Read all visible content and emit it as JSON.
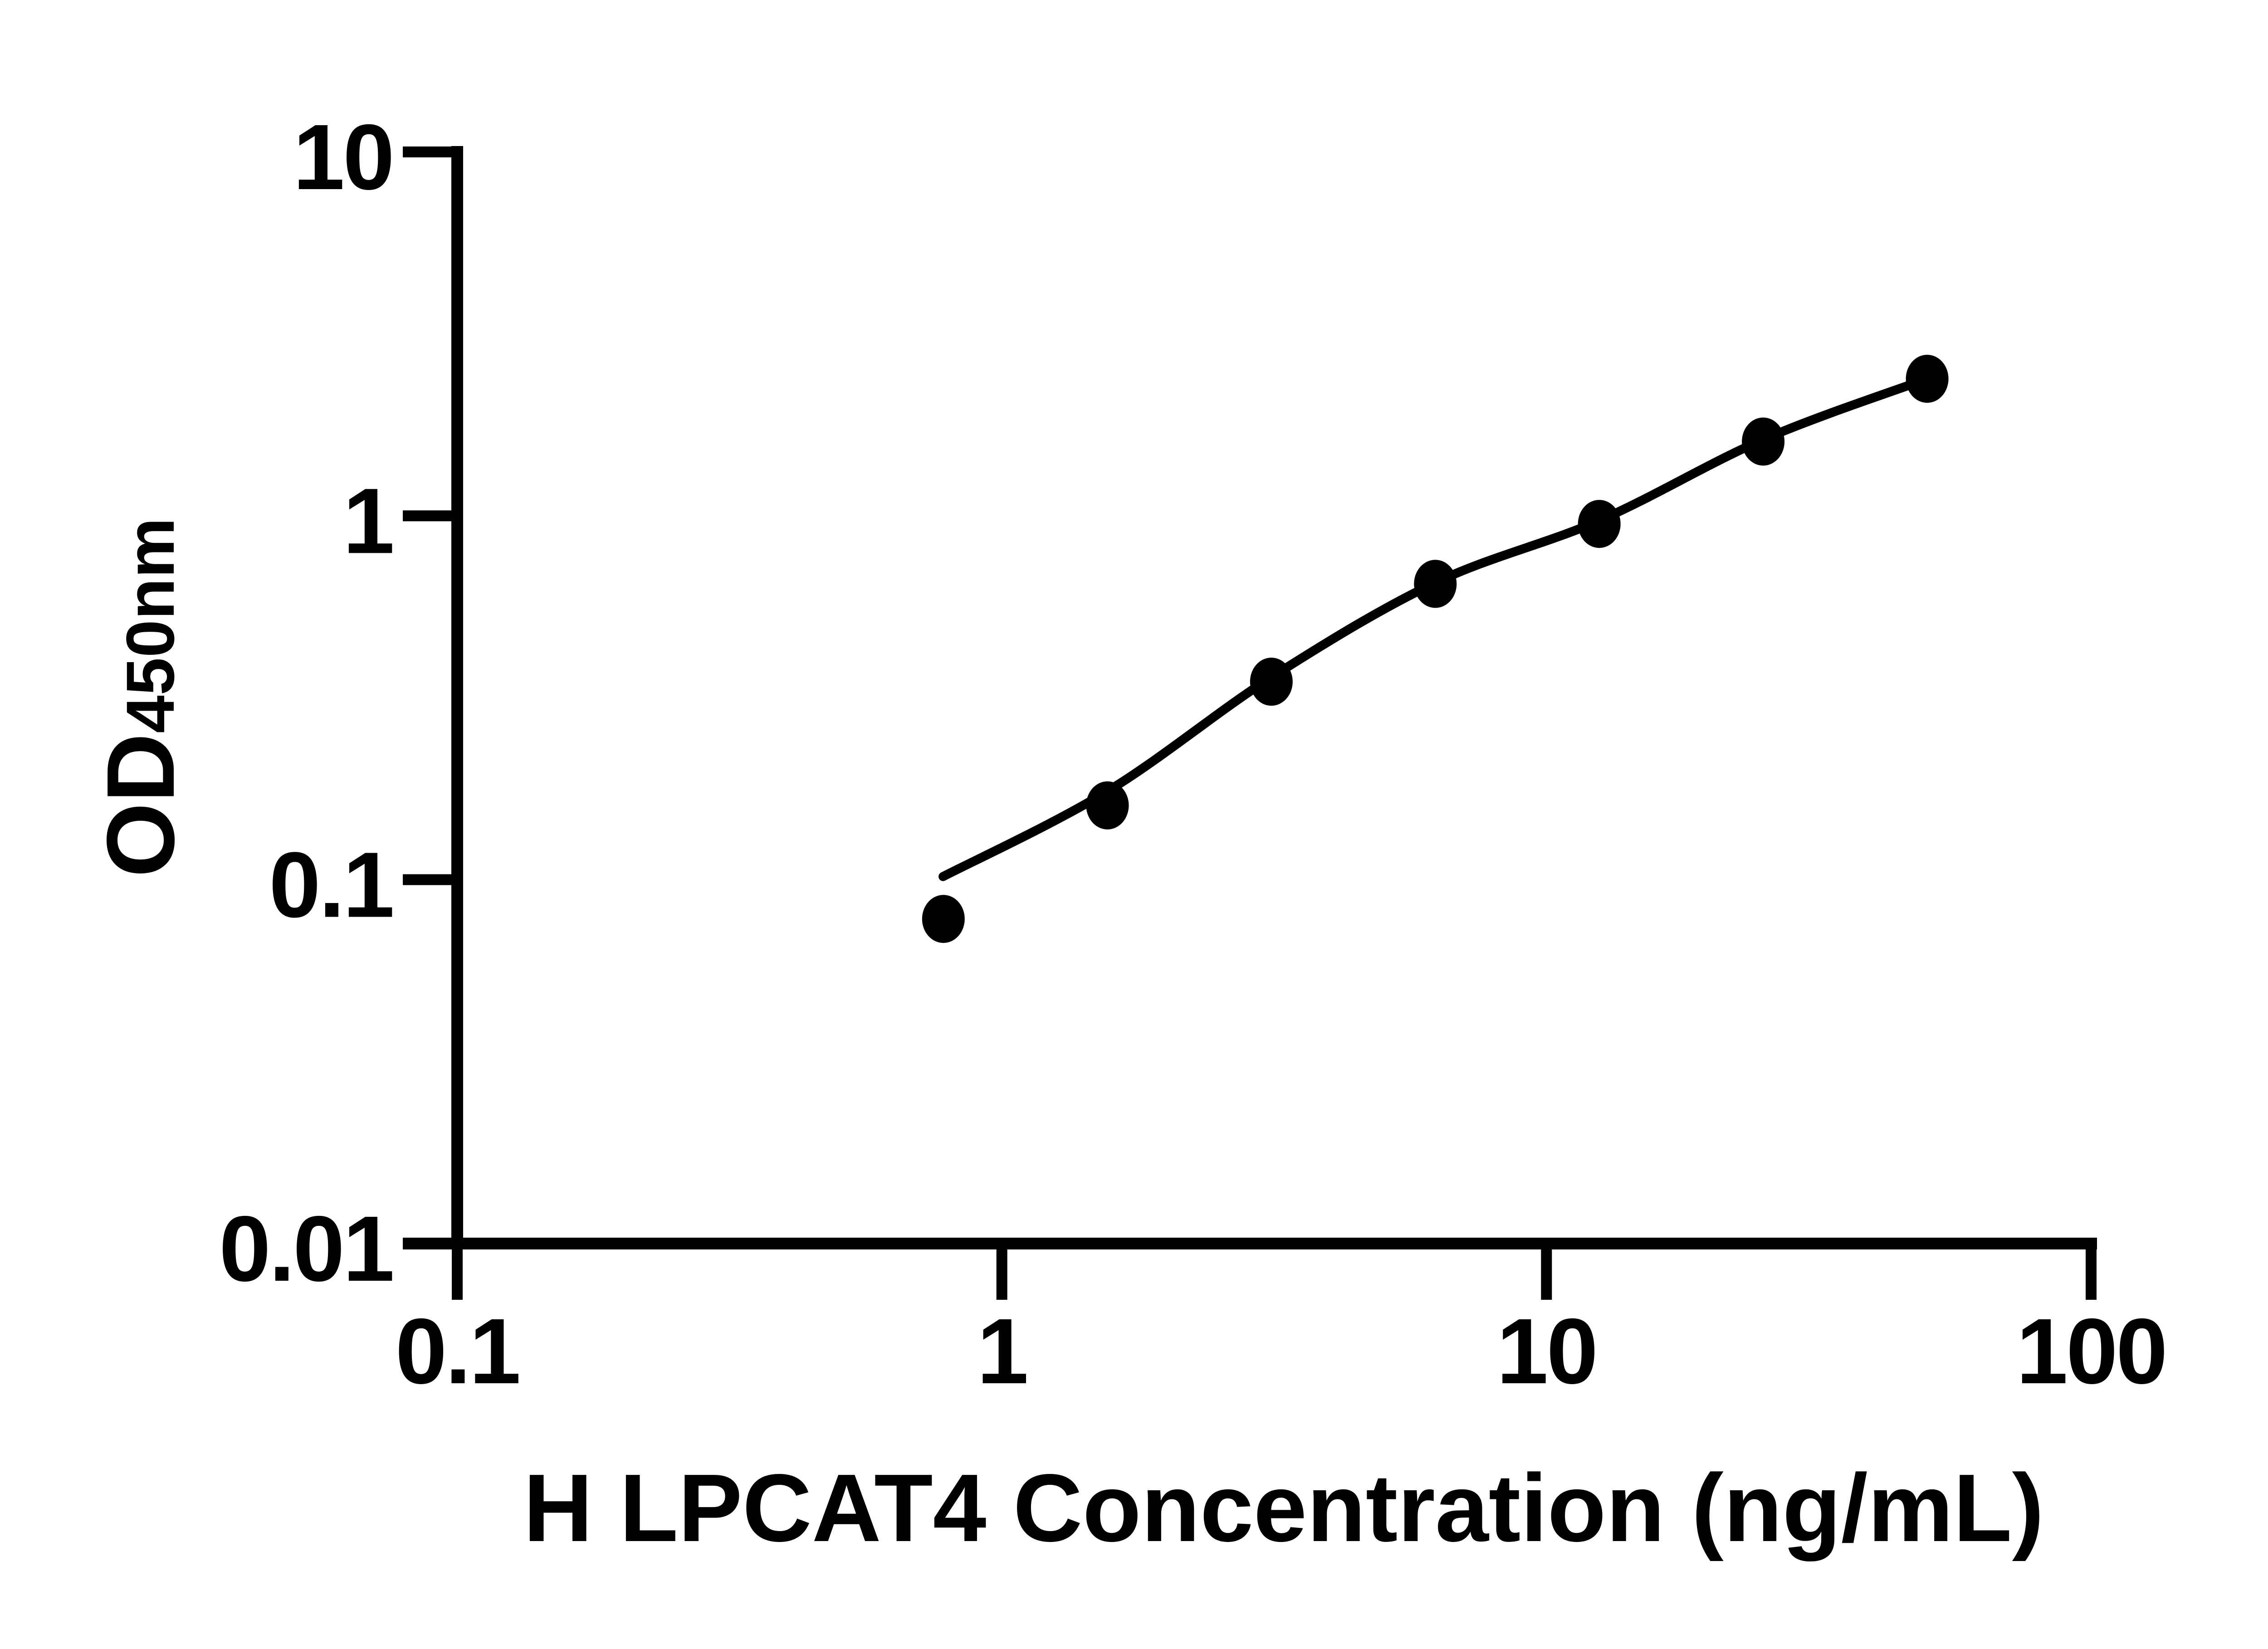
{
  "chart_data": {
    "type": "scatter",
    "title": "",
    "xlabel": "H LPCAT4 Concentration (ng/mL)",
    "ylabel_main": "OD",
    "ylabel_sub": "450nm",
    "x_scale": "log",
    "y_scale": "log",
    "xlim": [
      0.1,
      100
    ],
    "ylim": [
      0.01,
      10
    ],
    "x_ticks": [
      "0.1",
      "1",
      "10",
      "100"
    ],
    "y_ticks": [
      "10",
      "1",
      "0.1",
      "0.01"
    ],
    "grid": false,
    "legend": false,
    "background": "#ffffff",
    "axis_color": "#000000",
    "marker_color": "#000000",
    "line_color": "#000000",
    "marker_shape": "filled-circle",
    "points": [
      {
        "x": 0.781,
        "y": 0.078
      },
      {
        "x": 1.563,
        "y": 0.16
      },
      {
        "x": 3.125,
        "y": 0.35
      },
      {
        "x": 6.25,
        "y": 0.65
      },
      {
        "x": 12.5,
        "y": 0.95
      },
      {
        "x": 25,
        "y": 1.6
      },
      {
        "x": 50,
        "y": 2.38
      }
    ],
    "fit_curve": [
      {
        "x": 0.78,
        "y": 0.102
      },
      {
        "x": 1.563,
        "y": 0.175
      },
      {
        "x": 3.125,
        "y": 0.36
      },
      {
        "x": 6.25,
        "y": 0.655
      },
      {
        "x": 12.5,
        "y": 0.97
      },
      {
        "x": 25,
        "y": 1.62
      },
      {
        "x": 50,
        "y": 2.38
      }
    ]
  }
}
